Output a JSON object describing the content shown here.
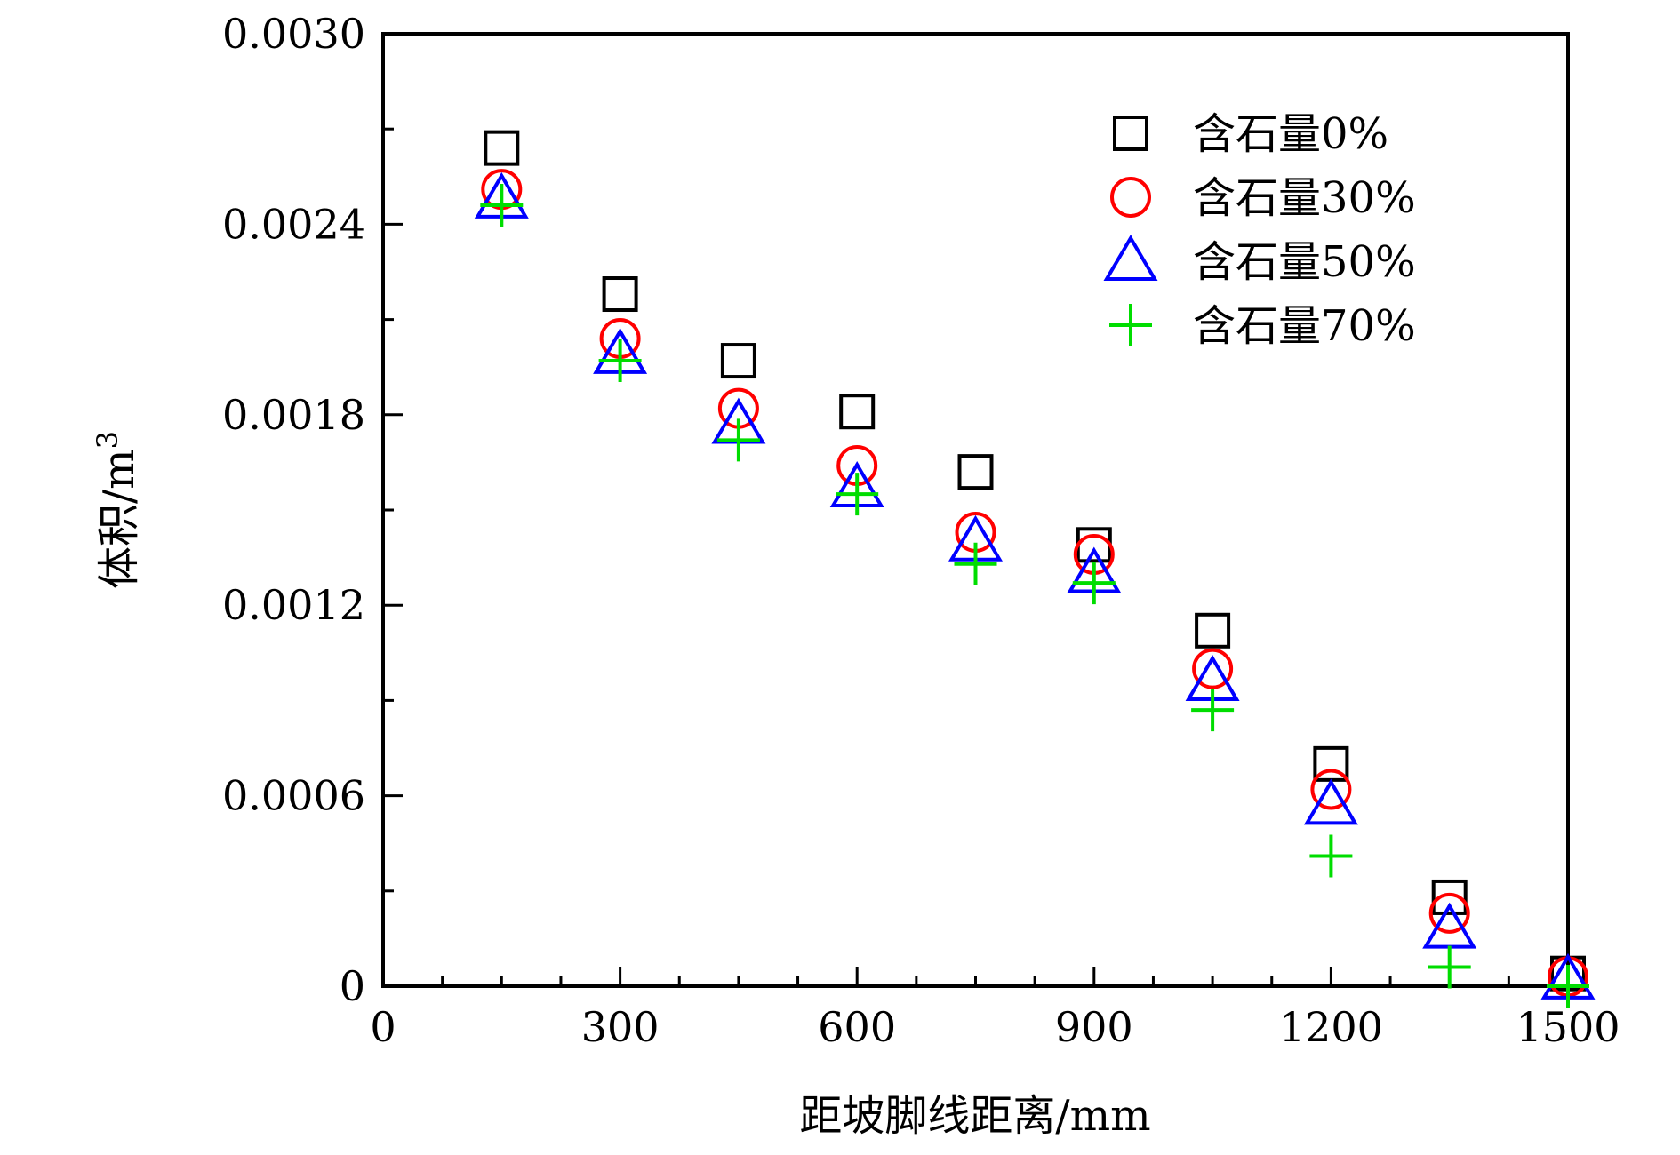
{
  "chart_data": {
    "type": "scatter",
    "xlabel": "距坡脚线距离/mm",
    "ylabel_main": "体积/m",
    "ylabel_sup": "3",
    "xlim": [
      0,
      1500
    ],
    "ylim": [
      0,
      0.003
    ],
    "x_ticks": [
      0,
      300,
      600,
      900,
      1200,
      1500
    ],
    "x_tick_labels": [
      "0",
      "300",
      "600",
      "900",
      "1200",
      "1500"
    ],
    "y_ticks": [
      0,
      0.0006,
      0.0012,
      0.0018,
      0.0024,
      0.003
    ],
    "y_tick_labels": [
      "0",
      "0.0006",
      "0.0012",
      "0.0018",
      "0.0024",
      "0.0030"
    ],
    "x_minor_step": 75,
    "y_minor_step": 0.0003,
    "legend_position": "top-right",
    "grid": false,
    "x": [
      150,
      300,
      450,
      600,
      750,
      900,
      1050,
      1200,
      1350,
      1500
    ],
    "series": [
      {
        "name": "含石量0%",
        "marker": "square",
        "color": "#000000",
        "values": [
          0.00264,
          0.00218,
          0.00197,
          0.00181,
          0.00162,
          0.00139,
          0.00112,
          0.0007,
          0.00028,
          4e-05
        ]
      },
      {
        "name": "含石量30%",
        "marker": "circle",
        "color": "#ff0000",
        "values": [
          0.00251,
          0.00204,
          0.00182,
          0.00164,
          0.00143,
          0.00136,
          0.001,
          0.00062,
          0.00023,
          3e-05
        ]
      },
      {
        "name": "含石量50%",
        "marker": "triangle",
        "color": "#0000ff",
        "values": [
          0.00248,
          0.00199,
          0.00177,
          0.00157,
          0.0014,
          0.0013,
          0.00096,
          0.00057,
          0.00018,
          2e-05
        ]
      },
      {
        "name": "含石量70%",
        "marker": "plus",
        "color": "#00dd00",
        "values": [
          0.00246,
          0.00197,
          0.00172,
          0.00155,
          0.00133,
          0.00127,
          0.00087,
          0.00041,
          6e-05,
          0.0
        ]
      }
    ]
  }
}
